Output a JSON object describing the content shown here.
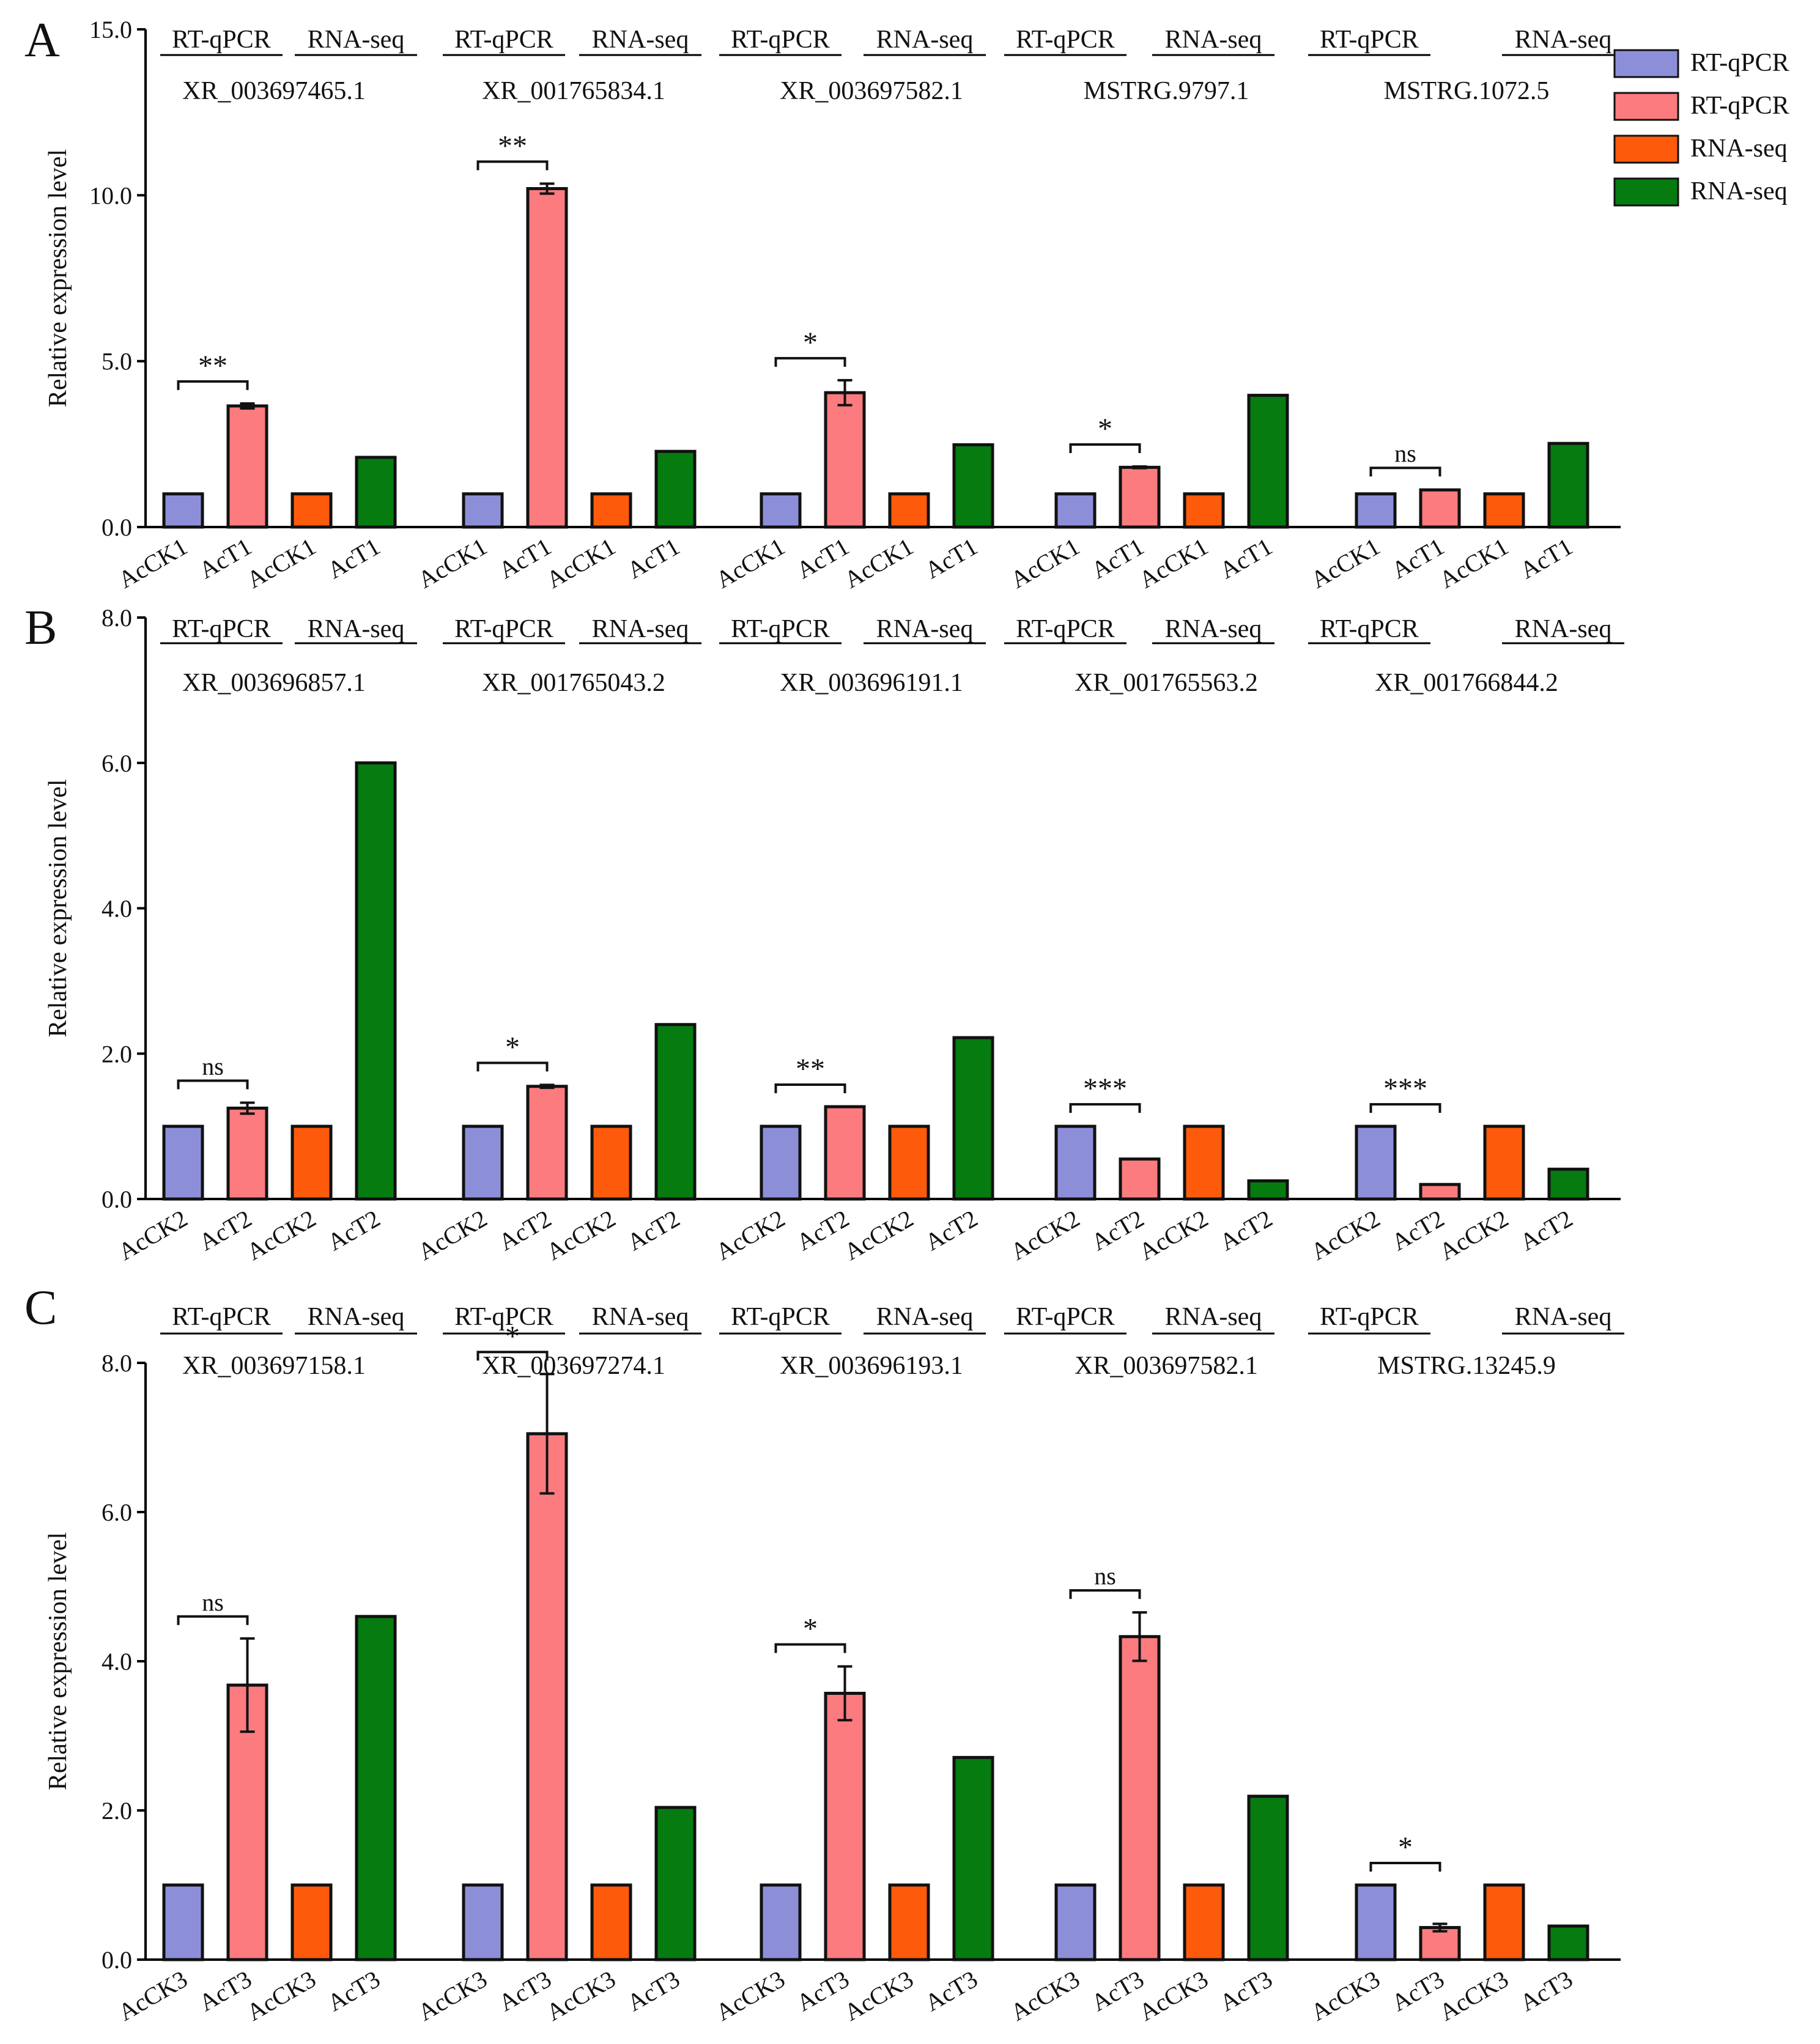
{
  "legend": {
    "items": [
      {
        "label": "RT-qPCR",
        "color": "#8c8fd8"
      },
      {
        "label": "RT-qPCR",
        "color": "#fb7b7f"
      },
      {
        "label": "RNA-seq",
        "color": "#fd5a0b"
      },
      {
        "label": "RNA-seq",
        "color": "#067b10"
      }
    ]
  },
  "chart_data": [
    {
      "type": "bar",
      "panel_label": "A",
      "ylabel": "Relative expression level",
      "ylim": [
        0,
        15
      ],
      "ytick_labels": [
        "0.0",
        "5.0",
        "10.0",
        "15.0"
      ],
      "method_labels": [
        "RT-qPCR",
        "RNA-seq"
      ],
      "bar_labels": [
        "AcCK1",
        "AcT1",
        "AcCK1",
        "AcT1"
      ],
      "groups": [
        {
          "gene": "XR_003697465.1",
          "values": [
            1,
            3.65,
            1,
            2.1
          ],
          "err": 0.15,
          "sig": "**"
        },
        {
          "gene": "XR_001765834.1",
          "values": [
            1,
            10.2,
            1,
            2.28
          ],
          "err": 0.3,
          "sig": "**"
        },
        {
          "gene": "XR_003697582.1",
          "values": [
            1,
            4.05,
            1,
            2.48
          ],
          "err": 0.75,
          "sig": "*"
        },
        {
          "gene": "MSTRG.9797.1",
          "values": [
            1,
            1.8,
            1,
            3.97
          ],
          "err": 0.05,
          "sig": "*"
        },
        {
          "gene": "MSTRG.1072.5",
          "values": [
            1,
            1.12,
            1,
            2.52
          ],
          "err": 0,
          "sig": "ns"
        }
      ]
    },
    {
      "type": "bar",
      "panel_label": "B",
      "ylabel": "Relative expression level",
      "ylim": [
        0,
        8
      ],
      "ytick_labels": [
        "0.0",
        "2.0",
        "4.0",
        "6.0",
        "8.0"
      ],
      "method_labels": [
        "RT-qPCR",
        "RNA-seq"
      ],
      "bar_labels": [
        "AcCK2",
        "AcT2",
        "AcCK2",
        "AcT2"
      ],
      "groups": [
        {
          "gene": "XR_003696857.1",
          "values": [
            1,
            1.25,
            1,
            6.0
          ],
          "err": 0.15,
          "sig": "ns"
        },
        {
          "gene": "XR_001765043.2",
          "values": [
            1,
            1.55,
            1,
            2.4
          ],
          "err": 0.04,
          "sig": "*"
        },
        {
          "gene": "XR_003696191.1",
          "values": [
            1,
            1.27,
            1,
            2.22
          ],
          "err": 0,
          "sig": "**"
        },
        {
          "gene": "XR_001765563.2",
          "values": [
            1,
            0.55,
            1,
            0.25
          ],
          "err": 0,
          "sig": "***"
        },
        {
          "gene": "XR_001766844.2",
          "values": [
            1,
            0.2,
            1,
            0.41
          ],
          "err": 0,
          "sig": "***"
        }
      ]
    },
    {
      "type": "bar",
      "panel_label": "C",
      "ylabel": "Relative expression level",
      "ylim": [
        0,
        8
      ],
      "ytick_labels": [
        "0.0",
        "2.0",
        "4.0",
        "6.0",
        "8.0"
      ],
      "method_labels": [
        "RT-qPCR",
        "RNA-seq"
      ],
      "bar_labels": [
        "AcCK3",
        "AcT3",
        "AcCK3",
        "AcT3"
      ],
      "groups": [
        {
          "gene": "XR_003697158.1",
          "values": [
            1,
            3.68,
            1,
            4.6
          ],
          "err": 1.25,
          "sig": "ns"
        },
        {
          "gene": "XR_003697274.1",
          "values": [
            1,
            7.05,
            1,
            2.04
          ],
          "err": 1.6,
          "sig": "*"
        },
        {
          "gene": "XR_003696193.1",
          "values": [
            1,
            3.57,
            1,
            2.71
          ],
          "err": 0.72,
          "sig": "*"
        },
        {
          "gene": "XR_003697582.1",
          "values": [
            1,
            4.33,
            1,
            2.19
          ],
          "err": 0.65,
          "sig": "ns"
        },
        {
          "gene": "MSTRG.13245.9",
          "values": [
            1,
            0.43,
            1,
            0.45
          ],
          "err": 0.1,
          "sig": "*"
        }
      ]
    }
  ]
}
